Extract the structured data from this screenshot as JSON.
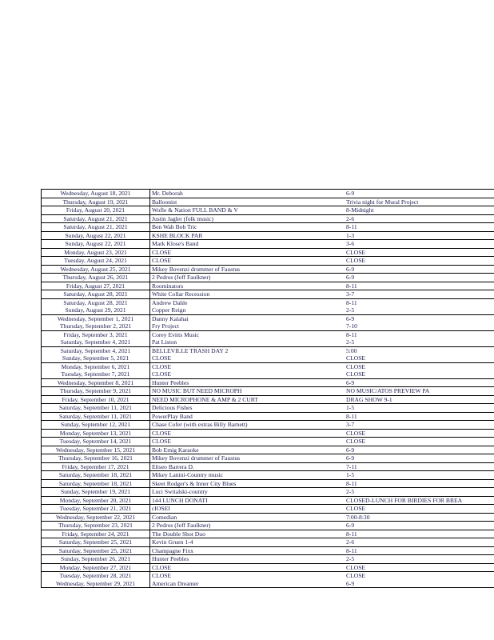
{
  "schedule": [
    [
      "Wednesday, August 18, 2021",
      "Mr. Deborah",
      "6-9"
    ],
    [
      "Thursday, August 19, 2021",
      "Balloonist",
      " Trivia night for Mural Project"
    ],
    [
      "Friday, August 20, 2021",
      "Wofle & Nation FULL BAND & V",
      "8-Midnight"
    ],
    [
      "Saturday, August 21, 2021",
      "Justin Jagler (folk music)",
      "2-6"
    ],
    [
      "Saturday, August 21, 2021",
      "Ben Wah Bob Tric",
      "8-11"
    ],
    [
      "Sunday, August 22, 2021",
      "KSHE BLOCK PAR",
      "1-3"
    ],
    [
      "Sunday, August 22, 2021",
      "Mark Klose's Band",
      "3-6"
    ],
    [
      "Monday, August 23, 2021",
      "CLOSE",
      "CLOSE"
    ],
    [
      "Tuesday, August 24, 2021",
      "CLOSE",
      "CLOSE"
    ],
    [
      "Wednesday, August 25, 2021",
      "Mikey Bovenzi drummer of Faustus",
      "6-9"
    ],
    [
      "Thursday, August 26, 2021",
      "2 Pedros (Jeff Faulkner)",
      "6-9"
    ],
    [
      "Friday, August 27, 2021",
      "Roominators",
      "8-11"
    ],
    [
      "Saturday, August 28, 2021",
      "White Collar Recession",
      "3-7"
    ],
    [
      "Saturday, August 28, 2021",
      "Andrew Dahle",
      "8-11"
    ],
    [
      "Sunday, August 29, 2021",
      "Copper Reign",
      "2-5"
    ],
    [
      "Wednesday, September 1, 2021",
      "Danny Kalahai",
      "6-9"
    ],
    [
      "Thursday, September 2, 2021",
      "Fry Project",
      "7-10"
    ],
    [
      "Friday, September 3, 2021",
      "Corey Evitts Music",
      "8-11"
    ],
    [
      "Saturday, September 4, 2021",
      "Pat Liston",
      "2-5"
    ],
    [
      "Saturday, September 4, 2021",
      "BELLEVILLE TRASH DAY 2",
      "5:00"
    ],
    [
      "Sunday, September 5, 2021",
      "CLOSE",
      "CLOSE"
    ],
    [
      "Monday, September 6, 2021",
      "CLOSE",
      "CLOSE"
    ],
    [
      "Tuesday, September 7, 2021",
      "CLOSE",
      "CLOSE"
    ],
    [
      "Wednesday, September 8, 2021",
      "Hunter Peebles",
      "6-9"
    ],
    [
      "Thursday, September 9, 2021",
      "NO MUSIC BUT NEED MICROPH",
      "NO MUSIC/ATOS PREVIEW PA"
    ],
    [
      "Friday, September 10, 2021",
      "NEED MICROPHONE & AMP & 2 CURT",
      "DRAG SHOW 9-1"
    ],
    [
      "Saturday, September 11, 2021",
      "Delicious Fishes",
      "1-5"
    ],
    [
      "Saturday, September 11, 2021",
      "PowerPlay Band",
      "8-11"
    ],
    [
      "Sunday, September 12, 2021",
      "Chase Cofer (with extras Billy Barnett)",
      "3-7"
    ],
    [
      "Monday, September 13, 2021",
      "CLOSE",
      "CLOSE"
    ],
    [
      "Tuesday, September 14, 2021",
      "CLOSE",
      "CLOSE"
    ],
    [
      "Wednesday, September 15, 2021",
      "Bob Emig Karaoke",
      "6-9"
    ],
    [
      "Thursday, September 16, 2021",
      "Mikey Bovenzi drummer of Faustus",
      "6-9"
    ],
    [
      "Friday, September 17, 2021",
      "Eliseo Barrera D.",
      "7-11"
    ],
    [
      "Saturday, September 18, 2021",
      "Mikey Lanini-Country music",
      "1-5"
    ],
    [
      "Saturday, September 18, 2021",
      "Skeet Rodger's & Inner City Blues",
      "8-11"
    ],
    [
      "Sunday, September 19, 2021",
      "Luci Switalski-country",
      "2-5"
    ],
    [
      "Monday, September 20, 2021",
      "144 LUNCH DONATI",
      "CLOSED-LUNCH FOR BIRDIES FOR BREA"
    ],
    [
      "Tuesday, September 21, 2021",
      "cIOSEI",
      "CLOSE"
    ],
    [
      "Wednesday, September 22, 2021",
      "Comedian",
      "7:00-8:30"
    ],
    [
      "Thursday, September 23, 2021",
      "2 Pedros (Jeff Faulkner)",
      "6-9"
    ],
    [
      "Friday, September 24, 2021",
      "The Double Shot Duo",
      "8-11"
    ],
    [
      "Saturday, September 25, 2021",
      "Kevin Gruen 1-4",
      "2-6"
    ],
    [
      "Saturday, September 25, 2021",
      "Champagne Fixx",
      "8-11"
    ],
    [
      "Sunday, September 26, 2021",
      "Hunter Peebles",
      "2-5"
    ],
    [
      "Monday, September 27, 2021",
      "CLOSE",
      "CLOSE"
    ],
    [
      "Tuesday, September 28, 2021",
      "CLOSE",
      "CLOSE"
    ],
    [
      "Wednesday, September 29, 2021",
      "American Dreamer",
      "6-9"
    ]
  ],
  "colors": {
    "text": "#1c1c50",
    "grid": "#000000"
  }
}
